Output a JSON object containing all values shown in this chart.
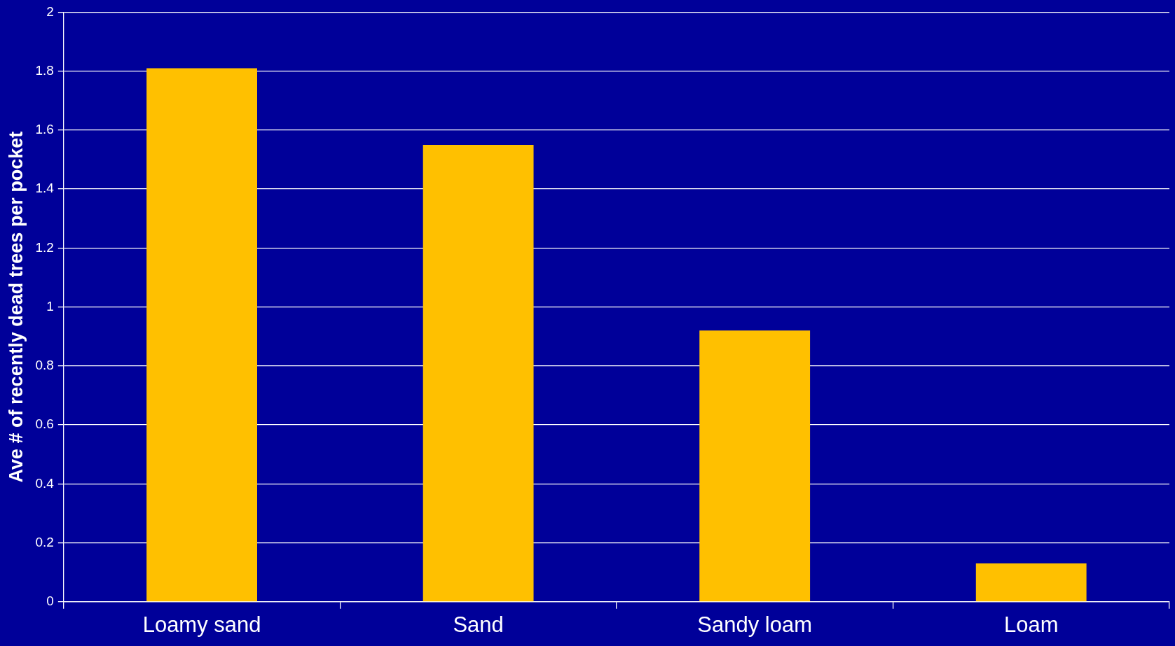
{
  "chart_data": {
    "type": "bar",
    "ylabel": "Ave # of recently dead trees per pocket",
    "categories": [
      "Loamy sand",
      "Sand",
      "Sandy loam",
      "Loam"
    ],
    "values": [
      1.81,
      1.55,
      0.92,
      0.13
    ],
    "color": "#ffc000",
    "ylim": [
      0,
      2
    ],
    "yticks": [
      0,
      0.2,
      0.4,
      0.6,
      0.8,
      1,
      1.2,
      1.4,
      1.6,
      1.8,
      2
    ],
    "grid": "y",
    "legend": false
  }
}
